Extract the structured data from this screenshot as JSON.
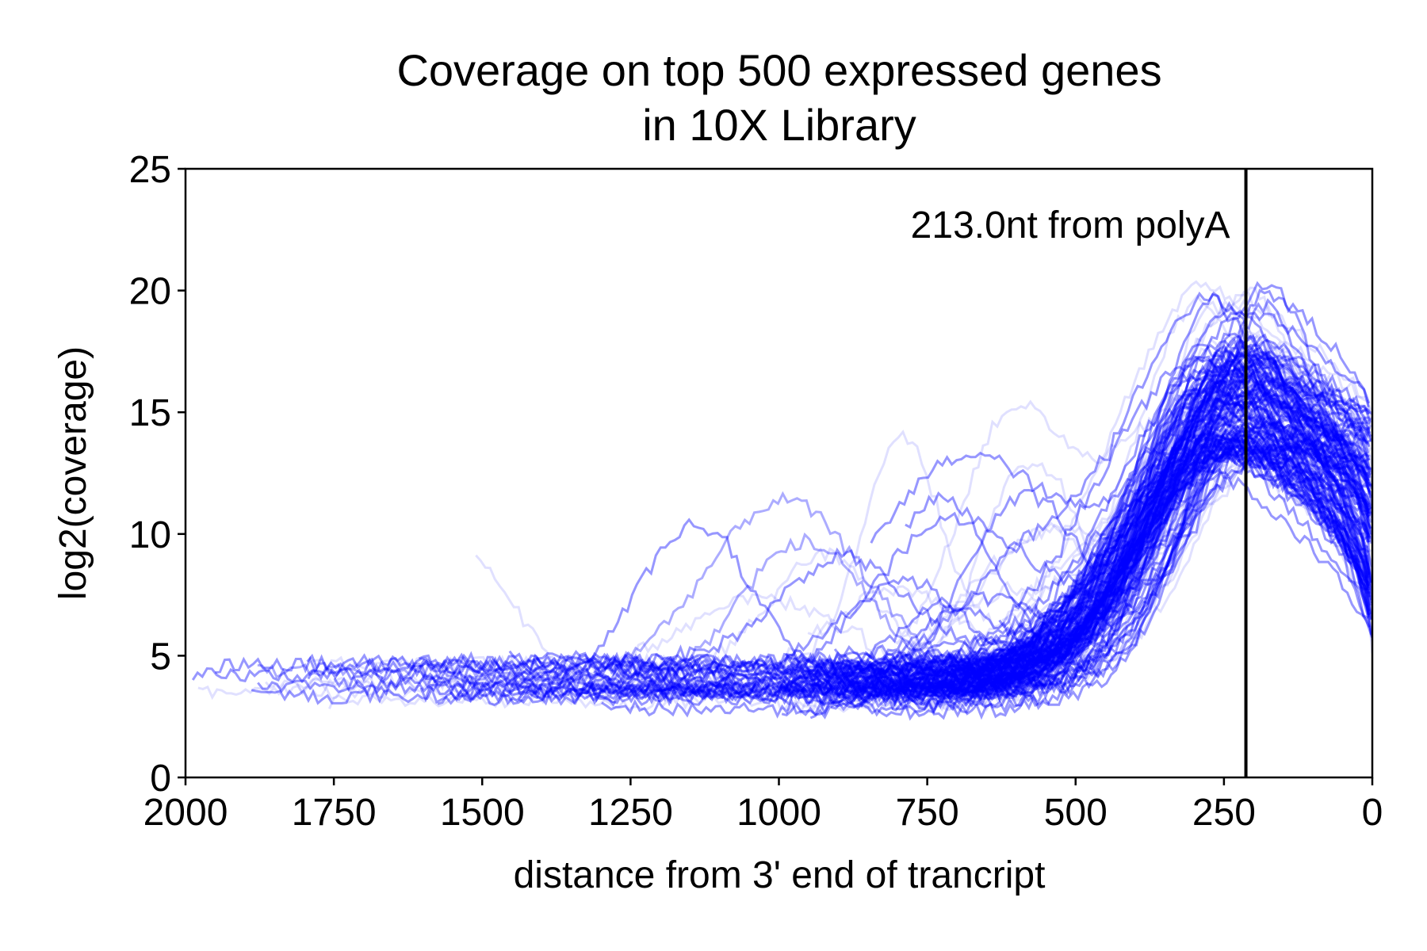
{
  "chart_data": {
    "type": "line",
    "title": "Coverage on top 500 expressed genes\nin 10X Library",
    "title_lines": [
      "Coverage on top 500 expressed genes",
      "in 10X Library"
    ],
    "xlabel": "distance from 3' end of trancript",
    "ylabel": "log2(coverage)",
    "xlim": [
      2000,
      0
    ],
    "ylim": [
      0,
      25
    ],
    "x_reversed": true,
    "x_ticks": [
      2000,
      1750,
      1500,
      1250,
      1000,
      750,
      500,
      250,
      0
    ],
    "y_ticks": [
      0,
      5,
      10,
      15,
      20,
      25
    ],
    "grid": false,
    "legend": "none",
    "series_color": "#0000ff",
    "series_opacity": 0.12,
    "n_series": 500,
    "vline": {
      "x": 213,
      "color": "#000000",
      "label": "213.0nt from polyA"
    },
    "series_summary": {
      "x": [
        2000,
        1750,
        1500,
        1250,
        1000,
        750,
        600,
        500,
        400,
        300,
        250,
        213,
        150,
        100,
        50,
        0
      ],
      "median_y": [
        4.5,
        4.6,
        5.0,
        5.3,
        5.5,
        4.8,
        4.5,
        7.5,
        11.5,
        14.5,
        15.6,
        15.8,
        15.2,
        14.0,
        12.3,
        9.0
      ],
      "peak_x": 213,
      "peak_y_range": [
        13,
        20.5
      ],
      "low_y_floor": 2.0
    }
  }
}
